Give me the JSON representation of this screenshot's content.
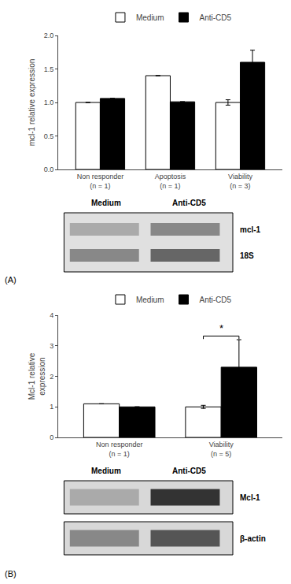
{
  "chart_data": [
    {
      "type": "bar",
      "categories": [
        "Non responder\n(n = 1)",
        "Apoptosis\n(n = 1)",
        "Viability\n(n = 3)"
      ],
      "series": [
        {
          "name": "Medium",
          "color": "white",
          "values": [
            1.0,
            1.4,
            1.0
          ],
          "errors": [
            0.0,
            0.0,
            0.04
          ]
        },
        {
          "name": "Anti-CD5",
          "color": "black",
          "values": [
            1.06,
            1.01,
            1.6
          ],
          "errors": [
            0.0,
            0.0,
            0.18
          ]
        }
      ],
      "ylabel": "mcl-1 relative expression",
      "ylim": [
        0,
        2.0
      ],
      "yticks": [
        {
          "value": 0,
          "label": "0.0"
        },
        0.5,
        {
          "value": 1,
          "label": "1.0"
        },
        1.5,
        {
          "value": 2,
          "label": "2.0"
        }
      ],
      "grid": false,
      "legend": "upper center",
      "annotations": [
        {
          "text": "Medium"
        },
        {
          "text": "Anti-CD5"
        },
        {
          "text": "mcl-1"
        },
        {
          "text": "18S"
        },
        {
          "text": "(A)"
        }
      ]
    },
    {
      "type": "bar",
      "categories": [
        "Non responder\n(n = 1)",
        "Viability\n(n = 5)"
      ],
      "series": [
        {
          "name": "Medium",
          "color": "white",
          "values": [
            1.1,
            1.0
          ],
          "errors": [
            0.0,
            0.05
          ]
        },
        {
          "name": "Anti-CD5",
          "color": "black",
          "values": [
            1.0,
            2.3
          ],
          "errors": [
            0.0,
            0.9
          ]
        }
      ],
      "ylabel": "Mcl-1 relative\nexpression",
      "ylim": [
        0,
        4
      ],
      "yticks": [
        0,
        1,
        2,
        3,
        4
      ],
      "grid": false,
      "legend": "upper center",
      "annotations": [
        {
          "text": "*",
          "category": "Viability\n(n = 5)"
        },
        {
          "text": "Medium"
        },
        {
          "text": "Anti-CD5"
        },
        {
          "text": "Mcl-1"
        },
        {
          "text": "β-actin"
        },
        {
          "text": "(B)"
        }
      ]
    }
  ]
}
